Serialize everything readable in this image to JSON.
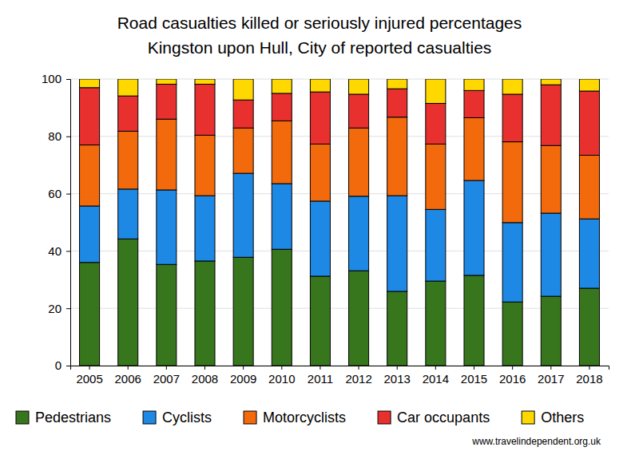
{
  "chart_data": {
    "type": "bar",
    "title": "Road casualties killed or seriously injured percentages\nKingston upon Hull, City of reported casualties",
    "source": "www.travelindependent.org.uk",
    "categories": [
      "2005",
      "2006",
      "2007",
      "2008",
      "2009",
      "2010",
      "2011",
      "2012",
      "2013",
      "2014",
      "2015",
      "2016",
      "2017",
      "2018"
    ],
    "series": [
      {
        "name": "Pedestrians",
        "color": "#38761d",
        "values": [
          36,
          44.2,
          35.3,
          36.5,
          37.8,
          40.6,
          31.2,
          33.1,
          25.9,
          29.5,
          31.5,
          22.2,
          24.2,
          27
        ]
      },
      {
        "name": "Cyclists",
        "color": "#1e88e5",
        "values": [
          19.7,
          17.4,
          26.0,
          22.8,
          29.3,
          22.9,
          26.2,
          26.0,
          33.4,
          25.0,
          33.1,
          27.7,
          29.0,
          24.2
        ]
      },
      {
        "name": "Motorcyclists",
        "color": "#f26a0c",
        "values": [
          21.3,
          20.2,
          24.7,
          21.1,
          15.8,
          21.9,
          19.9,
          23.8,
          27.4,
          22.8,
          21.9,
          28.2,
          23.6,
          22.2
        ]
      },
      {
        "name": "Car occupants",
        "color": "#e8302f",
        "values": [
          20,
          12.3,
          12.2,
          17.8,
          9.8,
          9.6,
          18.2,
          11.8,
          9.9,
          14.2,
          9.5,
          16.6,
          21.2,
          22.4
        ]
      },
      {
        "name": "Others",
        "color": "#ffd800",
        "values": [
          3,
          5.9,
          1.8,
          1.8,
          7.3,
          5,
          4.5,
          5.3,
          3.4,
          8.5,
          4,
          5.3,
          2,
          4.2
        ]
      }
    ],
    "ylim": [
      0,
      100
    ],
    "yticks": [
      0,
      20,
      40,
      60,
      80,
      100
    ],
    "grid": true,
    "stacked": true,
    "legend": "bottom"
  }
}
